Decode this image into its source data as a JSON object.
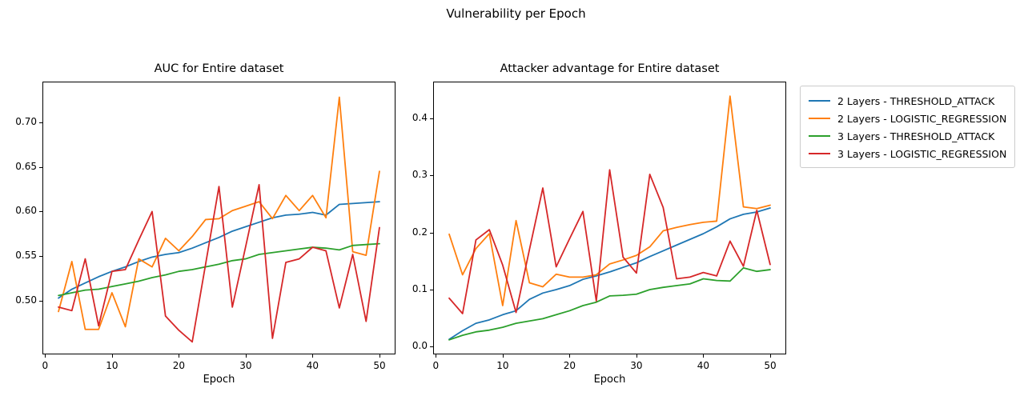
{
  "figure": {
    "suptitle": "Vulnerability per Epoch",
    "background": "#ffffff"
  },
  "colors": {
    "blue": "#1f77b4",
    "orange": "#ff7f0e",
    "green": "#2ca02c",
    "red": "#d62728",
    "axis": "#000000",
    "legend_border": "#cccccc"
  },
  "legend": {
    "position": "right-of-second-plot",
    "items": [
      {
        "label": "2 Layers - THRESHOLD_ATTACK",
        "color": "#1f77b4"
      },
      {
        "label": "2 Layers - LOGISTIC_REGRESSION",
        "color": "#ff7f0e"
      },
      {
        "label": "3 Layers - THRESHOLD_ATTACK",
        "color": "#2ca02c"
      },
      {
        "label": "3 Layers - LOGISTIC_REGRESSION",
        "color": "#d62728"
      }
    ]
  },
  "chart_data": [
    {
      "type": "line",
      "title": "AUC for Entire dataset",
      "xlabel": "Epoch",
      "ylabel": "",
      "grid": false,
      "xlim": [
        -0.4,
        52.4
      ],
      "ylim": [
        0.44,
        0.7455
      ],
      "xticks": {
        "values": [
          0,
          10,
          20,
          30,
          40,
          50
        ],
        "labels": [
          "0",
          "10",
          "20",
          "30",
          "40",
          "50"
        ]
      },
      "yticks": {
        "values": [
          0.5,
          0.55,
          0.6,
          0.65,
          0.7
        ],
        "labels": [
          "0.50",
          "0.55",
          "0.60",
          "0.65",
          "0.70"
        ]
      },
      "x": [
        2,
        4,
        6,
        8,
        10,
        12,
        14,
        16,
        18,
        20,
        22,
        24,
        26,
        28,
        30,
        32,
        34,
        36,
        38,
        40,
        42,
        44,
        46,
        48,
        50
      ],
      "series": [
        {
          "name": "2 Layers - THRESHOLD_ATTACK",
          "color": "#1f77b4",
          "values": [
            0.503,
            0.513,
            0.52,
            0.527,
            0.533,
            0.538,
            0.544,
            0.549,
            0.552,
            0.554,
            0.559,
            0.565,
            0.571,
            0.578,
            0.583,
            0.588,
            0.593,
            0.596,
            0.597,
            0.599,
            0.596,
            0.608,
            0.609,
            0.61,
            0.611
          ]
        },
        {
          "name": "2 Layers - LOGISTIC_REGRESSION",
          "color": "#ff7f0e",
          "values": [
            0.488,
            0.544,
            0.468,
            0.468,
            0.509,
            0.471,
            0.547,
            0.538,
            0.57,
            0.556,
            0.572,
            0.591,
            0.592,
            0.601,
            0.606,
            0.611,
            0.592,
            0.618,
            0.601,
            0.618,
            0.593,
            0.728,
            0.555,
            0.551,
            0.645
          ]
        },
        {
          "name": "3 Layers - THRESHOLD_ATTACK",
          "color": "#2ca02c",
          "values": [
            0.506,
            0.509,
            0.512,
            0.513,
            0.516,
            0.519,
            0.522,
            0.526,
            0.529,
            0.533,
            0.535,
            0.538,
            0.541,
            0.545,
            0.547,
            0.552,
            0.554,
            0.556,
            0.558,
            0.56,
            0.559,
            0.557,
            0.562,
            0.563,
            0.564
          ]
        },
        {
          "name": "3 Layers - LOGISTIC_REGRESSION",
          "color": "#d62728",
          "values": [
            0.493,
            0.489,
            0.547,
            0.472,
            0.533,
            0.535,
            0.568,
            0.6,
            0.483,
            0.467,
            0.454,
            0.541,
            0.628,
            0.493,
            0.561,
            0.63,
            0.458,
            0.543,
            0.547,
            0.56,
            0.556,
            0.492,
            0.552,
            0.477,
            0.582
          ]
        }
      ]
    },
    {
      "type": "line",
      "title": "Attacker advantage for Entire dataset",
      "xlabel": "Epoch",
      "ylabel": "",
      "grid": false,
      "xlim": [
        -0.4,
        52.4
      ],
      "ylim": [
        -0.0135,
        0.4645
      ],
      "xticks": {
        "values": [
          0,
          10,
          20,
          30,
          40,
          50
        ],
        "labels": [
          "0",
          "10",
          "20",
          "30",
          "40",
          "50"
        ]
      },
      "yticks": {
        "values": [
          0.0,
          0.1,
          0.2,
          0.3,
          0.4
        ],
        "labels": [
          "0.0",
          "0.1",
          "0.2",
          "0.3",
          "0.4"
        ]
      },
      "x": [
        2,
        4,
        6,
        8,
        10,
        12,
        14,
        16,
        18,
        20,
        22,
        24,
        26,
        28,
        30,
        32,
        34,
        36,
        38,
        40,
        42,
        44,
        46,
        48,
        50
      ],
      "series": [
        {
          "name": "2 Layers - THRESHOLD_ATTACK",
          "color": "#1f77b4",
          "values": [
            0.013,
            0.028,
            0.041,
            0.047,
            0.056,
            0.063,
            0.083,
            0.094,
            0.1,
            0.107,
            0.118,
            0.124,
            0.131,
            0.139,
            0.147,
            0.158,
            0.168,
            0.178,
            0.188,
            0.198,
            0.21,
            0.224,
            0.232,
            0.236,
            0.243
          ]
        },
        {
          "name": "2 Layers - LOGISTIC_REGRESSION",
          "color": "#ff7f0e",
          "values": [
            0.197,
            0.126,
            0.172,
            0.198,
            0.072,
            0.221,
            0.112,
            0.105,
            0.127,
            0.122,
            0.122,
            0.126,
            0.145,
            0.152,
            0.16,
            0.175,
            0.203,
            0.209,
            0.214,
            0.218,
            0.22,
            0.439,
            0.245,
            0.242,
            0.248
          ]
        },
        {
          "name": "3 Layers - THRESHOLD_ATTACK",
          "color": "#2ca02c",
          "values": [
            0.012,
            0.02,
            0.026,
            0.029,
            0.034,
            0.041,
            0.045,
            0.049,
            0.056,
            0.063,
            0.072,
            0.078,
            0.089,
            0.09,
            0.092,
            0.1,
            0.104,
            0.107,
            0.11,
            0.119,
            0.116,
            0.115,
            0.138,
            0.132,
            0.135
          ]
        },
        {
          "name": "3 Layers - LOGISTIC_REGRESSION",
          "color": "#d62728",
          "values": [
            0.085,
            0.058,
            0.187,
            0.205,
            0.143,
            0.06,
            0.17,
            0.278,
            0.14,
            0.189,
            0.237,
            0.08,
            0.31,
            0.157,
            0.129,
            0.302,
            0.244,
            0.119,
            0.122,
            0.13,
            0.124,
            0.185,
            0.141,
            0.239,
            0.144
          ]
        }
      ]
    }
  ]
}
